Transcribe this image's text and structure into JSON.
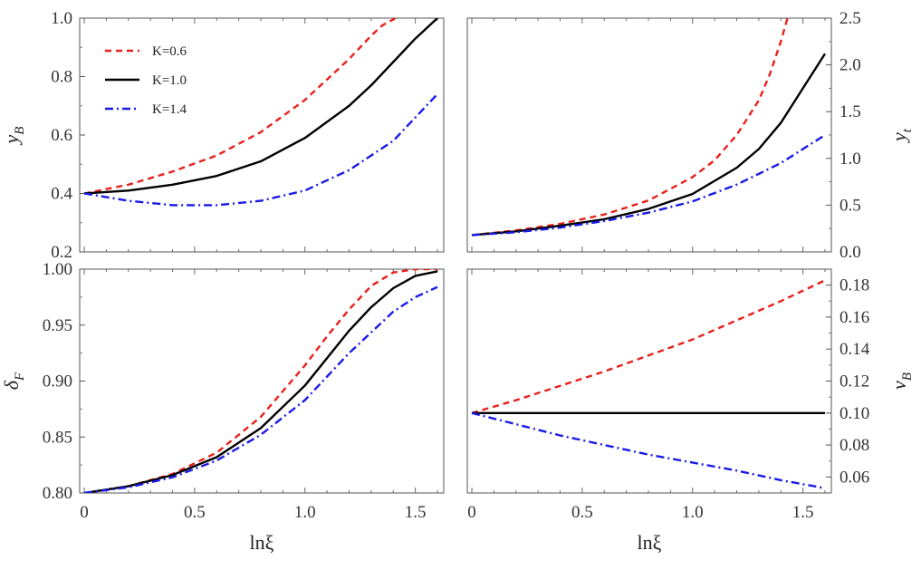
{
  "chart_data": [
    {
      "type": "line",
      "panel": "top-left",
      "ylabel": "y_B",
      "ylabel_sub": "B",
      "ylabel_base": "y",
      "y_axis_side": "left",
      "xlim": [
        0,
        1.6
      ],
      "ylim": [
        0.2,
        1.0
      ],
      "xticks": [],
      "yticks": [
        0.2,
        0.4,
        0.6,
        0.8,
        1.0
      ],
      "ytick_labels": [
        "0.2",
        "0.4",
        "0.6",
        "0.8",
        "1.0"
      ],
      "legend": {
        "placement": "top-left",
        "entries": [
          "K=0.6",
          "K=1.0",
          "K=1.4"
        ]
      },
      "series": [
        {
          "name": "K=0.6",
          "style": "dashed",
          "color": "#e8201c",
          "x": [
            0,
            0.2,
            0.4,
            0.6,
            0.8,
            1.0,
            1.1,
            1.2,
            1.3,
            1.35,
            1.41
          ],
          "y": [
            0.4,
            0.43,
            0.475,
            0.53,
            0.61,
            0.72,
            0.79,
            0.86,
            0.94,
            0.975,
            1.0
          ]
        },
        {
          "name": "K=1.0",
          "style": "solid",
          "color": "#000000",
          "x": [
            0,
            0.2,
            0.4,
            0.6,
            0.8,
            1.0,
            1.2,
            1.3,
            1.4,
            1.5,
            1.6
          ],
          "y": [
            0.4,
            0.41,
            0.43,
            0.46,
            0.51,
            0.59,
            0.7,
            0.77,
            0.85,
            0.93,
            1.0
          ]
        },
        {
          "name": "K=1.4",
          "style": "dashdot",
          "color": "#1a1ae6",
          "x": [
            0,
            0.2,
            0.4,
            0.6,
            0.8,
            1.0,
            1.2,
            1.4,
            1.6
          ],
          "y": [
            0.4,
            0.375,
            0.36,
            0.36,
            0.375,
            0.41,
            0.48,
            0.58,
            0.74
          ]
        }
      ]
    },
    {
      "type": "line",
      "panel": "top-right",
      "ylabel": "y_t",
      "ylabel_sub": "t",
      "ylabel_base": "y",
      "y_axis_side": "right",
      "xlim": [
        0,
        1.6
      ],
      "ylim": [
        0.0,
        2.5
      ],
      "xticks": [],
      "yticks": [
        0.0,
        0.5,
        1.0,
        1.5,
        2.0,
        2.5
      ],
      "ytick_labels": [
        "0.0",
        "0.5",
        "1.0",
        "1.5",
        "2.0",
        "2.5"
      ],
      "series": [
        {
          "name": "K=0.6",
          "style": "dashed",
          "color": "#e8201c",
          "x": [
            0,
            0.2,
            0.4,
            0.6,
            0.8,
            1.0,
            1.1,
            1.2,
            1.3,
            1.35,
            1.4,
            1.43
          ],
          "y": [
            0.18,
            0.23,
            0.3,
            0.4,
            0.55,
            0.8,
            0.98,
            1.25,
            1.62,
            1.9,
            2.25,
            2.5
          ]
        },
        {
          "name": "K=1.0",
          "style": "solid",
          "color": "#000000",
          "x": [
            0,
            0.2,
            0.4,
            0.6,
            0.8,
            1.0,
            1.2,
            1.3,
            1.4,
            1.5,
            1.6
          ],
          "y": [
            0.18,
            0.22,
            0.28,
            0.35,
            0.46,
            0.62,
            0.9,
            1.1,
            1.38,
            1.75,
            2.12
          ]
        },
        {
          "name": "K=1.4",
          "style": "dashdot",
          "color": "#1a1ae6",
          "x": [
            0,
            0.2,
            0.4,
            0.6,
            0.8,
            1.0,
            1.2,
            1.4,
            1.6
          ],
          "y": [
            0.18,
            0.21,
            0.26,
            0.33,
            0.42,
            0.54,
            0.72,
            0.95,
            1.25
          ]
        }
      ]
    },
    {
      "type": "line",
      "panel": "bottom-left",
      "ylabel": "δ_F",
      "ylabel_sub": "F",
      "ylabel_base": "δ",
      "y_axis_side": "left",
      "xlabel": "lnξ",
      "xlim": [
        0,
        1.6
      ],
      "ylim": [
        0.8,
        1.0
      ],
      "xticks": [
        0,
        0.5,
        1.0,
        1.5
      ],
      "xtick_labels": [
        "0",
        "0.5",
        "1.0",
        "1.5"
      ],
      "yticks": [
        0.8,
        0.85,
        0.9,
        0.95,
        1.0
      ],
      "ytick_labels": [
        "0.80",
        "0.85",
        "0.90",
        "0.95",
        "1.00"
      ],
      "series": [
        {
          "name": "K=0.6",
          "style": "dashed",
          "color": "#e8201c",
          "x": [
            0,
            0.2,
            0.4,
            0.6,
            0.8,
            1.0,
            1.1,
            1.2,
            1.3,
            1.4,
            1.5,
            1.6
          ],
          "y": [
            0.8,
            0.806,
            0.817,
            0.836,
            0.868,
            0.914,
            0.94,
            0.964,
            0.985,
            0.997,
            1.0,
            1.0
          ]
        },
        {
          "name": "K=1.0",
          "style": "solid",
          "color": "#000000",
          "x": [
            0,
            0.2,
            0.4,
            0.6,
            0.8,
            1.0,
            1.2,
            1.3,
            1.4,
            1.5,
            1.6
          ],
          "y": [
            0.8,
            0.806,
            0.816,
            0.832,
            0.858,
            0.896,
            0.945,
            0.966,
            0.983,
            0.994,
            0.998
          ]
        },
        {
          "name": "K=1.4",
          "style": "dashdot",
          "color": "#1a1ae6",
          "x": [
            0,
            0.2,
            0.4,
            0.6,
            0.8,
            1.0,
            1.2,
            1.4,
            1.5,
            1.6
          ],
          "y": [
            0.8,
            0.805,
            0.814,
            0.829,
            0.852,
            0.883,
            0.925,
            0.962,
            0.975,
            0.984
          ]
        }
      ]
    },
    {
      "type": "line",
      "panel": "bottom-right",
      "ylabel": "v_B",
      "ylabel_sub": "B",
      "ylabel_base": "v",
      "y_axis_side": "right",
      "xlabel": "lnξ",
      "xlim": [
        0,
        1.6
      ],
      "ylim": [
        0.05,
        0.19
      ],
      "xticks": [
        0,
        0.5,
        1.0,
        1.5
      ],
      "xtick_labels": [
        "0",
        "0.5",
        "1.0",
        "1.5"
      ],
      "yticks": [
        0.06,
        0.08,
        0.1,
        0.12,
        0.14,
        0.16,
        0.18
      ],
      "ytick_labels": [
        "0.06",
        "0.08",
        "0.10",
        "0.12",
        "0.14",
        "0.16",
        "0.18"
      ],
      "series": [
        {
          "name": "K=0.6",
          "style": "dashed",
          "color": "#e8201c",
          "x": [
            0,
            0.2,
            0.4,
            0.6,
            0.8,
            1.0,
            1.2,
            1.4,
            1.6
          ],
          "y": [
            0.1,
            0.108,
            0.117,
            0.126,
            0.136,
            0.146,
            0.158,
            0.17,
            0.183
          ]
        },
        {
          "name": "K=1.0",
          "style": "solid",
          "color": "#000000",
          "x": [
            0,
            1.6
          ],
          "y": [
            0.1,
            0.1
          ]
        },
        {
          "name": "K=1.4",
          "style": "dashdot",
          "color": "#1a1ae6",
          "x": [
            0,
            0.2,
            0.4,
            0.6,
            0.8,
            1.0,
            1.2,
            1.4,
            1.6
          ],
          "y": [
            0.1,
            0.093,
            0.086,
            0.08,
            0.074,
            0.069,
            0.064,
            0.058,
            0.053
          ]
        }
      ]
    }
  ]
}
